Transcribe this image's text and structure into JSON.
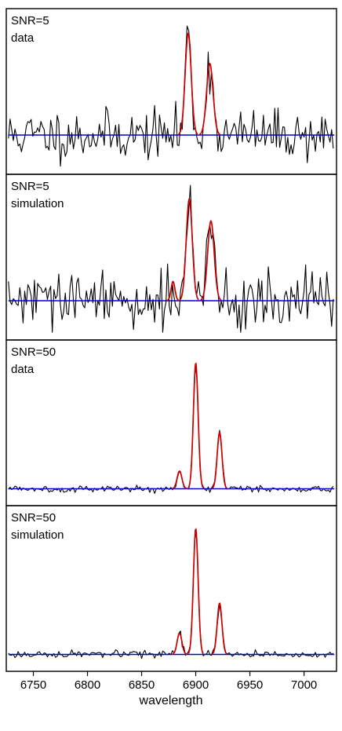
{
  "figure": {
    "xlabel": "wavelength"
  },
  "chart_data": [
    {
      "type": "line",
      "labels": [
        "SNR=5",
        "data"
      ],
      "xlim": [
        6725,
        7030
      ],
      "ylim": [
        -1.2,
        4.2
      ],
      "continuum_level": 0,
      "seed": 11,
      "noise_sigma": 0.45,
      "lines": [
        {
          "center": 6893,
          "sigma": 2.8,
          "amplitude": 3.7
        },
        {
          "center": 6913,
          "sigma": 3.0,
          "amplitude": 2.6
        }
      ],
      "series": [
        {
          "color": "#000000"
        },
        {
          "color": "#cc0000"
        },
        {
          "color": "#0000cc"
        }
      ]
    },
    {
      "type": "line",
      "labels": [
        "SNR=5",
        "simulation"
      ],
      "xlim": [
        6725,
        7030
      ],
      "ylim": [
        -1.2,
        4.2
      ],
      "continuum_level": 0,
      "seed": 29,
      "noise_sigma": 0.5,
      "lines": [
        {
          "center": 6879,
          "sigma": 1.8,
          "amplitude": 0.7
        },
        {
          "center": 6894,
          "sigma": 2.8,
          "amplitude": 3.7
        },
        {
          "center": 6914,
          "sigma": 3.0,
          "amplitude": 2.9
        }
      ],
      "series": [
        {
          "color": "#000000"
        },
        {
          "color": "#cc0000"
        },
        {
          "color": "#0000cc"
        }
      ]
    },
    {
      "type": "line",
      "labels": [
        "SNR=50",
        "data"
      ],
      "xlim": [
        6725,
        7030
      ],
      "ylim": [
        -0.6,
        7.8
      ],
      "continuum_level": 0,
      "seed": 5,
      "noise_sigma": 0.09,
      "lines": [
        {
          "center": 6885,
          "sigma": 2.2,
          "amplitude": 1.0
        },
        {
          "center": 6900,
          "sigma": 2.2,
          "amplitude": 7.1
        },
        {
          "center": 6922,
          "sigma": 2.2,
          "amplitude": 3.2
        }
      ],
      "series": [
        {
          "color": "#000000"
        },
        {
          "color": "#cc0000"
        },
        {
          "color": "#0000cc"
        }
      ]
    },
    {
      "type": "line",
      "labels": [
        "SNR=50",
        "simulation"
      ],
      "xlim": [
        6725,
        7030
      ],
      "ylim": [
        -0.6,
        7.8
      ],
      "continuum_level": 0,
      "seed": 17,
      "noise_sigma": 0.1,
      "lines": [
        {
          "center": 6885,
          "sigma": 2.2,
          "amplitude": 1.2
        },
        {
          "center": 6900,
          "sigma": 2.2,
          "amplitude": 7.1
        },
        {
          "center": 6922,
          "sigma": 2.2,
          "amplitude": 2.9
        }
      ],
      "series": [
        {
          "color": "#000000"
        },
        {
          "color": "#cc0000"
        },
        {
          "color": "#0000cc"
        }
      ]
    }
  ],
  "x_ticks": [
    6750,
    6800,
    6850,
    6900,
    6950,
    7000
  ],
  "x_tick_labels": [
    "6750",
    "6800",
    "6850",
    "6900",
    "6950",
    "7000"
  ]
}
